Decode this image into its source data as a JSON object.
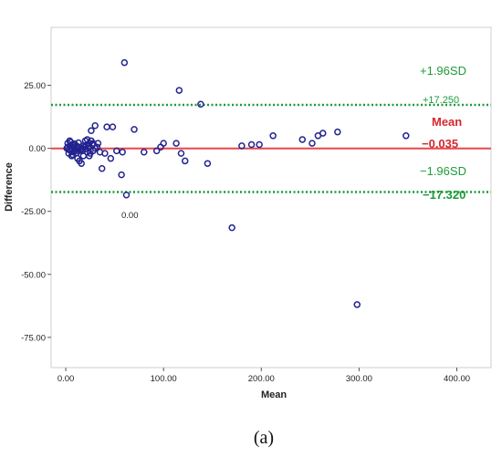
{
  "chart_data": {
    "type": "scatter",
    "title": "",
    "xlabel": "Mean",
    "ylabel": "Difference",
    "xlim": [
      -15,
      435
    ],
    "ylim": [
      -87,
      48
    ],
    "x_ticks": [
      "0.00",
      "100.00",
      "200.00",
      "300.00",
      "400.00"
    ],
    "x_tick_values": [
      0,
      100,
      200,
      300,
      400
    ],
    "y_ticks": [
      "25.00",
      "0.00",
      "-25.00",
      "-50.00",
      "-75.00"
    ],
    "y_tick_values": [
      25,
      0,
      -25,
      -50,
      -75
    ],
    "grid": false,
    "series": [
      {
        "marker": "open-circle",
        "color": "#22238f",
        "points": [
          [
            1,
            0
          ],
          [
            2,
            0.5
          ],
          [
            3,
            -0.5
          ],
          [
            4,
            1
          ],
          [
            5,
            -1
          ],
          [
            6,
            0
          ],
          [
            7,
            1.5
          ],
          [
            8,
            -1.5
          ],
          [
            9,
            0.5
          ],
          [
            10,
            -0.5
          ],
          [
            11,
            1
          ],
          [
            12,
            0
          ],
          [
            13,
            -1
          ],
          [
            14,
            0.5
          ],
          [
            15,
            -0.8
          ],
          [
            2,
            2
          ],
          [
            3,
            -2
          ],
          [
            5,
            2.5
          ],
          [
            7,
            -2.5
          ],
          [
            9,
            1.8
          ],
          [
            11,
            -1.8
          ],
          [
            13,
            2.2
          ],
          [
            16,
            0
          ],
          [
            17,
            -1
          ],
          [
            18,
            1
          ],
          [
            4,
            3
          ],
          [
            6,
            -3
          ],
          [
            19,
            0.5
          ],
          [
            20,
            -0.3
          ],
          [
            21,
            1.2
          ],
          [
            22,
            -1.5
          ],
          [
            23,
            0.8
          ],
          [
            24,
            2
          ],
          [
            25,
            -2
          ],
          [
            26,
            3
          ],
          [
            27,
            1.5
          ],
          [
            28,
            -1
          ],
          [
            30,
            0
          ],
          [
            32,
            0.5
          ],
          [
            12,
            -4
          ],
          [
            14,
            -5
          ],
          [
            16,
            -6
          ],
          [
            18,
            -3
          ],
          [
            20,
            3
          ],
          [
            22,
            3.5
          ],
          [
            24,
            -3
          ],
          [
            26,
            7
          ],
          [
            28,
            2
          ],
          [
            30,
            9
          ],
          [
            33,
            2
          ],
          [
            35,
            -1.5
          ],
          [
            37,
            -8
          ],
          [
            40,
            -2
          ],
          [
            42,
            8.5
          ],
          [
            46,
            -4
          ],
          [
            48,
            8.5
          ],
          [
            52,
            -1
          ],
          [
            57,
            -10.5
          ],
          [
            58,
            -1.5
          ],
          [
            60,
            34
          ],
          [
            62,
            -18.5
          ],
          [
            70,
            7.5
          ],
          [
            80,
            -1.5
          ],
          [
            93,
            -1
          ],
          [
            97,
            0.5
          ],
          [
            100,
            2
          ],
          [
            113,
            2
          ],
          [
            116,
            23
          ],
          [
            118,
            -2
          ],
          [
            122,
            -5
          ],
          [
            138,
            17.5
          ],
          [
            145,
            -6
          ],
          [
            170,
            -31.5
          ],
          [
            180,
            1
          ],
          [
            190,
            1.5
          ],
          [
            198,
            1.5
          ],
          [
            212,
            5
          ],
          [
            242,
            3.5
          ],
          [
            252,
            2
          ],
          [
            258,
            5
          ],
          [
            263,
            6
          ],
          [
            278,
            6.5
          ],
          [
            298,
            -62
          ],
          [
            348,
            5
          ]
        ]
      }
    ],
    "reference_lines": [
      {
        "y": 17.25,
        "label": "+1.96SD",
        "value_label": "+17.250",
        "color": "#1e9a3a",
        "style": "dotted"
      },
      {
        "y": -0.035,
        "label": "Mean",
        "value_label": "−0.035",
        "color": "#e8474c",
        "style": "solid"
      },
      {
        "y": -17.32,
        "label": "−1.96SD",
        "value_label": "−17.320",
        "color": "#1e9a3a",
        "style": "dotted"
      }
    ],
    "annotation_text": "0.00"
  },
  "caption": "(a)"
}
